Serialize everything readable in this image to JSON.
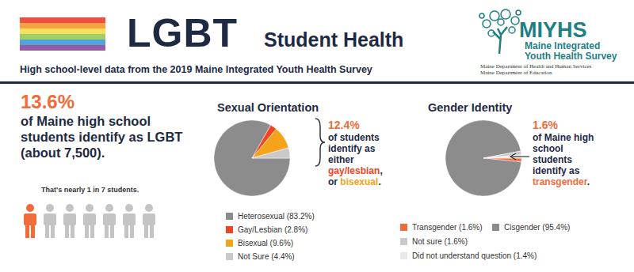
{
  "header": {
    "title": "LGBT",
    "title_suffix": "Student Health",
    "subtitle": "High school-level data from the 2019 Maine Integrated Youth Health Survey"
  },
  "logo": {
    "acronym": "MIYHS",
    "name_lines": [
      "Maine Integrated",
      "Youth Health Survey"
    ],
    "departments": [
      "Maine Department of Health and Human Services",
      "Maine Department of Education"
    ]
  },
  "headline": {
    "stat": "13.6%",
    "text": "of Maine high school students identify as LGBT (about 7,500).",
    "note": "That's nearly 1 in 7 students.",
    "icons": {
      "total": 7,
      "highlighted": 1
    }
  },
  "chart_data": [
    {
      "type": "pie",
      "title": "Sexual Orientation",
      "categories": [
        "Heterosexual (83.2%)",
        "Gay/Lesbian (2.8%)",
        "Bisexual (9.6%)",
        "Not Sure (4.4%)"
      ],
      "values": [
        83.2,
        2.8,
        9.6,
        4.4
      ],
      "colors": [
        "#8c8c8c",
        "#ef4423",
        "#f5a31a",
        "#c9c9c9"
      ],
      "legend": "bottom",
      "callout": {
        "stat": "12.4%",
        "segments": [
          {
            "text": "of students identify as either "
          },
          {
            "text": "gay/lesbian",
            "color": "#ef4423"
          },
          {
            "text": ", or "
          },
          {
            "text": "bisexual",
            "color": "#f5a31a"
          },
          {
            "text": "."
          }
        ]
      }
    },
    {
      "type": "pie",
      "title": "Gender Identity",
      "categories": [
        "Transgender (1.6%)",
        "Cisgender (95.4%)",
        "Not sure (1.6%)",
        "Did not understand question (1.4%)"
      ],
      "values": [
        1.6,
        95.4,
        1.6,
        1.4
      ],
      "colors": [
        "#f26b3a",
        "#8c8c8c",
        "#c9c9c9",
        "#e8e8e8"
      ],
      "legend": "bottom",
      "callout": {
        "stat": "1.6%",
        "segments": [
          {
            "text": "of Maine high school students identify as "
          },
          {
            "text": "transgender",
            "color": "#f26b3a"
          },
          {
            "text": "."
          }
        ]
      }
    }
  ]
}
